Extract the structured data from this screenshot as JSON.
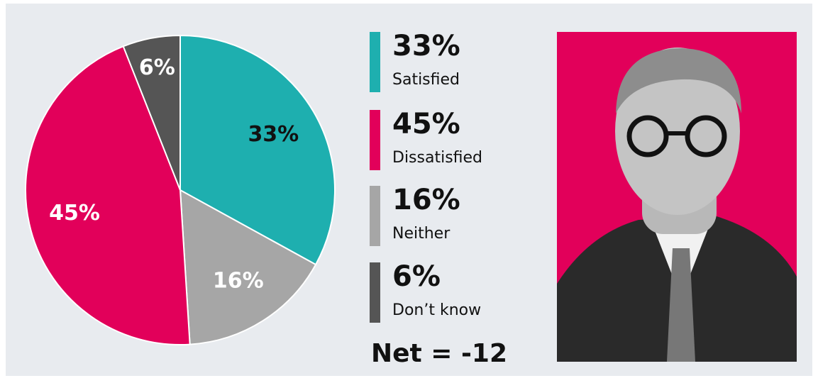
{
  "chart_data": {
    "type": "pie",
    "categories": [
      "Satisfied",
      "Neither",
      "Dissatisfied",
      "Don’t know"
    ],
    "values": [
      33,
      16,
      45,
      6
    ],
    "value_labels": [
      "33%",
      "16%",
      "45%",
      "6%"
    ],
    "colors": [
      "#1eafaf",
      "#a6a6a6",
      "#e2005a",
      "#555555"
    ],
    "label_colors": [
      "#111111",
      "#ffffff",
      "#ffffff",
      "#ffffff"
    ]
  },
  "legend": {
    "items": [
      {
        "value": "33%",
        "label": "Satisfied",
        "color": "#1eafaf"
      },
      {
        "value": "45%",
        "label": "Dissatisfied",
        "color": "#e2005a"
      },
      {
        "value": "16%",
        "label": "Neither",
        "color": "#a6a6a6"
      },
      {
        "value": "6%",
        "label": "Don’t know",
        "color": "#555555"
      }
    ]
  },
  "note": "Net = -12"
}
